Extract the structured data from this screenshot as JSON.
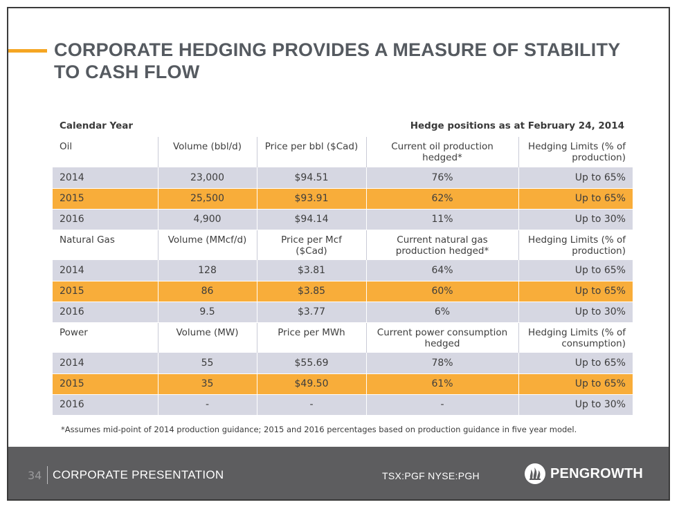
{
  "title": {
    "line1": "CORPORATE HEDGING PROVIDES A MEASURE OF  STABILITY",
    "line2": "TO CASH FLOW"
  },
  "table_caption": {
    "left": "Calendar Year",
    "right": "Hedge positions as at February 24, 2014"
  },
  "sections": [
    {
      "headers": [
        "Oil",
        "Volume (bbl/d)",
        "Price per bbl ($Cad)",
        "Current oil production hedged*",
        "Hedging Limits (% of production)"
      ],
      "rows": [
        [
          "2014",
          "23,000",
          "$94.51",
          "76%",
          "Up to 65%"
        ],
        [
          "2015",
          "25,500",
          "$93.91",
          "62%",
          "Up to 65%"
        ],
        [
          "2016",
          "4,900",
          "$94.14",
          "11%",
          "Up to 30%"
        ]
      ]
    },
    {
      "headers": [
        "Natural Gas",
        "Volume (MMcf/d)",
        "Price per Mcf ($Cad)",
        "Current natural gas production hedged*",
        "Hedging Limits (% of production)"
      ],
      "rows": [
        [
          "2014",
          "128",
          "$3.81",
          "64%",
          "Up to 65%"
        ],
        [
          "2015",
          "86",
          "$3.85",
          "60%",
          "Up to 65%"
        ],
        [
          "2016",
          "9.5",
          "$3.77",
          "6%",
          "Up to 30%"
        ]
      ]
    },
    {
      "headers": [
        "Power",
        "Volume (MW)",
        "Price per MWh",
        "Current power consumption hedged",
        "Hedging Limits (% of consumption)"
      ],
      "rows": [
        [
          "2014",
          "55",
          "$55.69",
          "78%",
          "Up to 65%"
        ],
        [
          "2015",
          "35",
          "$49.50",
          "61%",
          "Up to 65%"
        ],
        [
          "2016",
          "-",
          "-",
          "-",
          "Up to 30%"
        ]
      ]
    }
  ],
  "footnote": "*Assumes mid-point of 2014 production guidance; 2015 and 2016 percentages based on production guidance  in five year model.",
  "footer": {
    "page_number": "34",
    "label": "CORPORATE PRESENTATION",
    "ticker": "TSX:PGF  NYSE:PGH",
    "logo_text": "PENGROWTH",
    "logo_icon": "flame-logo-icon"
  },
  "colors": {
    "accent": "#f5a623",
    "row_gray": "#d6d7e2",
    "row_orange": "#f8ad3a",
    "footer_bg": "#5d5d5f"
  }
}
